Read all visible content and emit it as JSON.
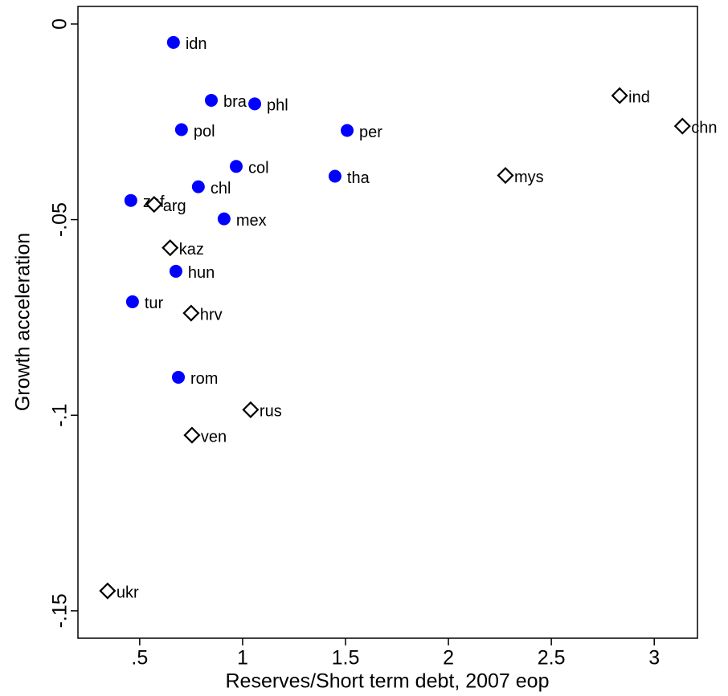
{
  "chart_data": {
    "type": "scatter",
    "x_label": "Reserves/Short term debt, 2007 eop",
    "y_label": "Growth acceleration",
    "xlim": [
      0.2,
      3.21
    ],
    "ylim": [
      -0.157,
      0.0045
    ],
    "xticks": [
      {
        "value": 0.5,
        "label": ".5"
      },
      1,
      1.5,
      2,
      2.5,
      3
    ],
    "yticks": [
      0,
      {
        "value": -0.05,
        "label": "-.05"
      },
      {
        "value": -0.1,
        "label": "-.1"
      },
      {
        "value": -0.15,
        "label": "-.15"
      }
    ],
    "series": [
      {
        "marker": "circle",
        "color": "#0000ff",
        "labels": [
          "idn",
          "bra",
          "phl",
          "pol",
          "per",
          "col",
          "chl",
          "tha",
          "zaf",
          "mex",
          "hun",
          "tur",
          "rom"
        ],
        "x": [
          0.664,
          0.848,
          1.059,
          0.703,
          1.508,
          0.969,
          0.785,
          1.449,
          0.457,
          0.91,
          0.676,
          0.465,
          0.688
        ],
        "values": [
          -0.0047,
          -0.0195,
          -0.0204,
          -0.027,
          -0.0272,
          -0.0364,
          -0.0416,
          -0.0389,
          -0.0451,
          -0.0498,
          -0.0632,
          -0.071,
          -0.0903
        ]
      },
      {
        "marker": "diamond",
        "color": "#000000",
        "labels": [
          "ind",
          "chn",
          "mys",
          "arg",
          "kaz",
          "hrv",
          "rus",
          "ven",
          "ukr"
        ],
        "x": [
          2.832,
          3.137,
          2.277,
          0.57,
          0.648,
          0.75,
          1.039,
          0.754,
          0.344
        ],
        "values": [
          -0.0183,
          -0.0261,
          -0.0387,
          -0.0461,
          -0.0572,
          -0.0739,
          -0.0986,
          -0.1051,
          -0.1449
        ]
      }
    ]
  }
}
